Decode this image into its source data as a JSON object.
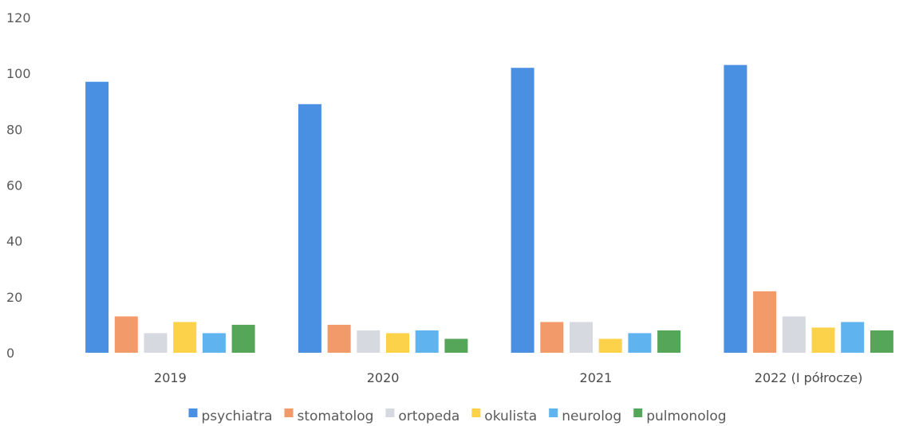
{
  "chart_data": {
    "type": "bar",
    "title": "",
    "xlabel": "",
    "ylabel": "",
    "ylim": [
      0,
      120
    ],
    "yticks": [
      0,
      20,
      40,
      60,
      80,
      100,
      120
    ],
    "grid": false,
    "legend_position": "bottom",
    "categories": [
      "2019",
      "2020",
      "2021",
      "2022 (I półrocze)"
    ],
    "series": [
      {
        "name": "psychiatra",
        "color": "#4a90e2",
        "values": [
          97,
          89,
          102,
          103
        ]
      },
      {
        "name": "stomatolog",
        "color": "#f39a6b",
        "values": [
          13,
          10,
          11,
          22
        ]
      },
      {
        "name": "ortopeda",
        "color": "#d7d9e0",
        "values": [
          7,
          8,
          11,
          13
        ]
      },
      {
        "name": "okulista",
        "color": "#fcd24a",
        "values": [
          11,
          7,
          5,
          9
        ]
      },
      {
        "name": "neurolog",
        "color": "#5fb4ef",
        "values": [
          7,
          8,
          7,
          11
        ]
      },
      {
        "name": "pulmonolog",
        "color": "#56a65a",
        "values": [
          10,
          5,
          8,
          8
        ]
      }
    ]
  }
}
